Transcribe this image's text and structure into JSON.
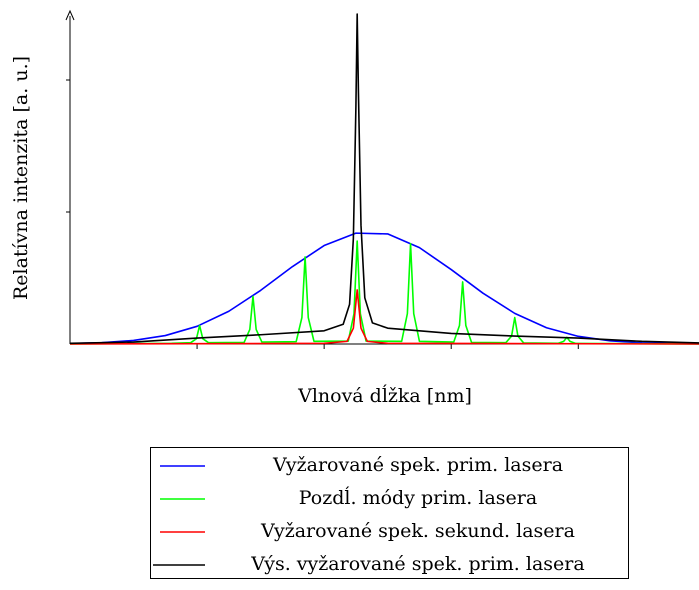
{
  "chart_data": {
    "type": "line",
    "xlabel": "Vlnová dĺžka [nm]",
    "ylabel": "Relatívna intenzita [a. u.]",
    "xlim": [
      0,
      4.95
    ],
    "ylim": [
      0,
      2.5
    ],
    "xticks": [
      1,
      2,
      3,
      4
    ],
    "yticks": [
      1,
      2
    ],
    "legend": "bottom",
    "series": [
      {
        "name": "Vyžarované spek. prim. lasera",
        "color": "#0000ff",
        "x": [
          0,
          0.25,
          0.5,
          0.75,
          1.0,
          1.25,
          1.5,
          1.75,
          2.0,
          2.25,
          2.5,
          2.75,
          3.0,
          3.25,
          3.5,
          3.75,
          4.0,
          4.25,
          4.5,
          4.75,
          4.95
        ],
        "values": [
          0.003,
          0.01,
          0.027,
          0.064,
          0.134,
          0.248,
          0.406,
          0.586,
          0.746,
          0.84,
          0.834,
          0.73,
          0.564,
          0.385,
          0.232,
          0.123,
          0.058,
          0.024,
          0.009,
          0.003,
          0.001
        ]
      },
      {
        "name": "Pozdĺ. módy prim. lasera",
        "color": "#00ff00",
        "x": [
          0,
          0.8,
          0.95,
          0.995,
          1.02,
          1.045,
          1.09,
          1.37,
          1.415,
          1.44,
          1.465,
          1.51,
          1.78,
          1.825,
          1.85,
          1.875,
          1.92,
          2.19,
          2.235,
          2.26,
          2.285,
          2.33,
          2.61,
          2.655,
          2.68,
          2.705,
          2.75,
          3.02,
          3.065,
          3.09,
          3.115,
          3.16,
          3.43,
          3.475,
          3.5,
          3.525,
          3.57,
          3.84,
          3.885,
          3.91,
          3.935,
          3.98,
          4.2,
          4.95
        ],
        "values": [
          0,
          0.005,
          0.01,
          0.04,
          0.14,
          0.04,
          0.01,
          0.012,
          0.11,
          0.36,
          0.11,
          0.015,
          0.018,
          0.2,
          0.66,
          0.2,
          0.02,
          0.022,
          0.23,
          0.78,
          0.23,
          0.022,
          0.02,
          0.23,
          0.76,
          0.23,
          0.02,
          0.015,
          0.14,
          0.47,
          0.14,
          0.012,
          0.01,
          0.06,
          0.2,
          0.06,
          0.008,
          0.005,
          0.02,
          0.05,
          0.02,
          0.004,
          0.003,
          0
        ]
      },
      {
        "name": "Vyžarované spek. sekund. lasera",
        "color": "#ff0000",
        "x": [
          0,
          2.0,
          2.18,
          2.23,
          2.26,
          2.29,
          2.34,
          2.5,
          4.95
        ],
        "values": [
          0,
          0.005,
          0.02,
          0.12,
          0.41,
          0.12,
          0.02,
          0.005,
          0
        ]
      },
      {
        "name": "Výs. vyžarované spek. prim. lasera",
        "color": "#000000",
        "x": [
          0,
          0.5,
          1.0,
          1.5,
          2.0,
          2.15,
          2.2,
          2.23,
          2.25,
          2.26,
          2.27,
          2.29,
          2.32,
          2.38,
          2.5,
          3.0,
          3.5,
          4.0,
          4.5,
          4.95
        ],
        "values": [
          0.005,
          0.015,
          0.045,
          0.07,
          0.1,
          0.15,
          0.3,
          0.8,
          1.8,
          2.5,
          1.9,
          0.9,
          0.35,
          0.16,
          0.12,
          0.08,
          0.06,
          0.045,
          0.02,
          0.008
        ]
      }
    ]
  }
}
